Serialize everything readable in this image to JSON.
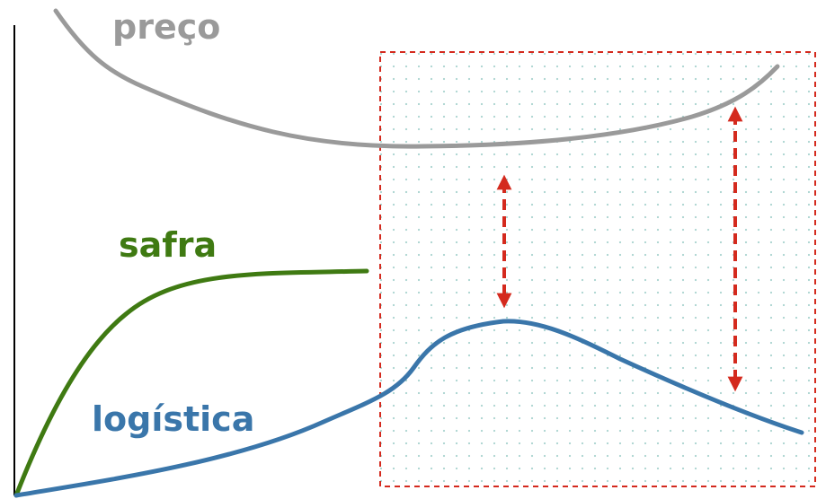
{
  "labels": {
    "preco": "preço",
    "safra": "safra",
    "logistica": "logística"
  },
  "colors": {
    "preco": "#9a9a9a",
    "safra": "#3f7a12",
    "logistica": "#3a76aa",
    "highlight_border": "#d42a1e",
    "highlight_dots": "#a9d3cf",
    "arrow": "#d42a1e",
    "axis": "#000000"
  },
  "icons": {
    "arrow_a": "double-headed-arrow-icon",
    "arrow_b": "double-headed-arrow-icon"
  }
}
